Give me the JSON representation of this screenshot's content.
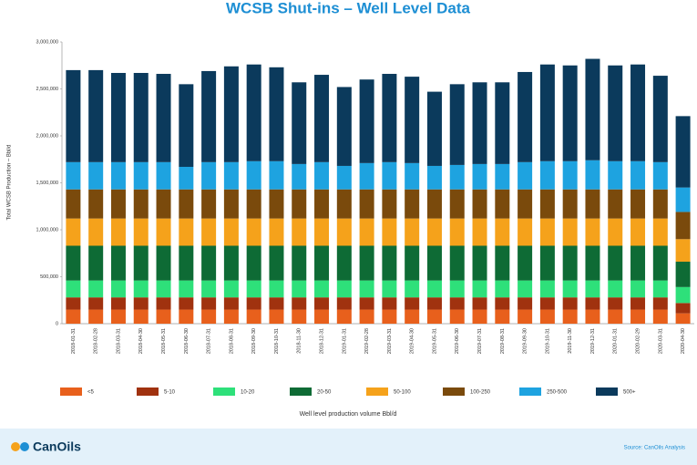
{
  "chart_data": {
    "type": "stacked_bar",
    "title": "WCSB Shut-ins – Well Level Data",
    "y_label": "Total WCSB Production – Bbl/d",
    "legend_title": "Well level production volume Bbl/d",
    "categories": [
      "2018-01-31",
      "2018-02-28",
      "2018-03-31",
      "2018-04-30",
      "2018-05-31",
      "2018-06-30",
      "2018-07-31",
      "2018-08-31",
      "2018-09-30",
      "2018-10-31",
      "2018-11-30",
      "2018-12-31",
      "2019-01-31",
      "2019-02-28",
      "2019-03-31",
      "2019-04-30",
      "2019-05-31",
      "2019-06-30",
      "2019-07-31",
      "2019-08-31",
      "2019-09-30",
      "2019-10-31",
      "2019-11-30",
      "2019-12-31",
      "2020-01-31",
      "2020-02-29",
      "2020-03-31",
      "2020-04-30"
    ],
    "series": [
      {
        "name": "<5",
        "color": "#e8601c",
        "values": [
          150000,
          150000,
          150000,
          150000,
          150000,
          150000,
          150000,
          150000,
          150000,
          150000,
          150000,
          150000,
          150000,
          150000,
          150000,
          150000,
          150000,
          150000,
          150000,
          150000,
          150000,
          150000,
          150000,
          150000,
          150000,
          150000,
          150000,
          110000
        ]
      },
      {
        "name": "5-10",
        "color": "#a0320f",
        "values": [
          130000,
          130000,
          130000,
          130000,
          130000,
          130000,
          130000,
          130000,
          130000,
          130000,
          130000,
          130000,
          130000,
          130000,
          130000,
          130000,
          130000,
          130000,
          130000,
          130000,
          130000,
          130000,
          130000,
          130000,
          130000,
          130000,
          130000,
          110000
        ]
      },
      {
        "name": "10-20",
        "color": "#2ee07a",
        "values": [
          180000,
          180000,
          180000,
          180000,
          180000,
          180000,
          180000,
          180000,
          180000,
          180000,
          180000,
          180000,
          180000,
          180000,
          180000,
          180000,
          180000,
          180000,
          180000,
          180000,
          180000,
          180000,
          180000,
          180000,
          180000,
          180000,
          180000,
          170000
        ]
      },
      {
        "name": "20-50",
        "color": "#0e6b35",
        "values": [
          370000,
          370000,
          370000,
          370000,
          370000,
          370000,
          370000,
          370000,
          370000,
          370000,
          370000,
          370000,
          370000,
          370000,
          370000,
          370000,
          370000,
          370000,
          370000,
          370000,
          370000,
          370000,
          370000,
          370000,
          370000,
          370000,
          370000,
          270000
        ]
      },
      {
        "name": "50-100",
        "color": "#f5a21b",
        "values": [
          290000,
          290000,
          290000,
          290000,
          290000,
          290000,
          290000,
          290000,
          290000,
          290000,
          290000,
          290000,
          290000,
          290000,
          290000,
          290000,
          290000,
          290000,
          290000,
          290000,
          290000,
          290000,
          290000,
          290000,
          290000,
          290000,
          290000,
          240000
        ]
      },
      {
        "name": "100-250",
        "color": "#7a4a0c",
        "values": [
          310000,
          310000,
          310000,
          310000,
          310000,
          310000,
          310000,
          310000,
          310000,
          310000,
          310000,
          310000,
          310000,
          310000,
          310000,
          310000,
          310000,
          310000,
          310000,
          310000,
          310000,
          310000,
          310000,
          310000,
          310000,
          310000,
          310000,
          290000
        ]
      },
      {
        "name": "250-500",
        "color": "#1ea3e0",
        "values": [
          290000,
          290000,
          290000,
          290000,
          290000,
          240000,
          290000,
          290000,
          300000,
          300000,
          270000,
          290000,
          250000,
          280000,
          290000,
          280000,
          250000,
          260000,
          270000,
          270000,
          290000,
          300000,
          300000,
          310000,
          300000,
          300000,
          290000,
          260000
        ]
      },
      {
        "name": "500+",
        "color": "#0b3a5c",
        "values": [
          980000,
          980000,
          950000,
          950000,
          940000,
          880000,
          970000,
          1020000,
          1030000,
          1000000,
          870000,
          930000,
          840000,
          890000,
          940000,
          920000,
          790000,
          860000,
          870000,
          870000,
          960000,
          1030000,
          1020000,
          1080000,
          1020000,
          1030000,
          920000,
          760000
        ]
      }
    ],
    "ylim": [
      0,
      3000000
    ],
    "yticks": [
      0,
      {
        "value": 500000,
        "label": "500,000"
      },
      {
        "value": 1000000,
        "label": "1,000,000"
      },
      {
        "value": 1500000,
        "label": "1,500,000"
      },
      {
        "value": 2000000,
        "label": "2,000,000"
      },
      {
        "value": 2500000,
        "label": "2,500,000"
      },
      {
        "value": 3000000,
        "label": "3,000,000"
      }
    ],
    "grid": false,
    "source": "Source: CanOils Analysis",
    "brand": "CanOils"
  }
}
